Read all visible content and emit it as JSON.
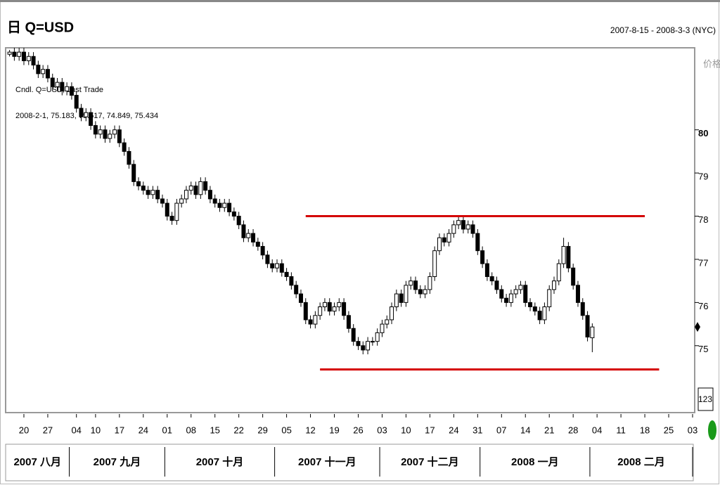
{
  "chart_data": {
    "type": "candlestick",
    "title": "日 Q=USD",
    "subtitle": "2007-8-15 - 2008-3-3 (NYC)",
    "y_label": "价格",
    "legend": "Cndl. Q=USD, Last Trade",
    "info": "2008-2-1, 75.183, 75.517, 74.849, 75.434",
    "box_label": "123",
    "up_color": "#ffffff",
    "down_color": "#000000",
    "x": [
      "2007-08-15",
      "2007-08-16",
      "2007-08-17",
      "2007-08-20",
      "2007-08-21",
      "2007-08-22",
      "2007-08-23",
      "2007-08-24",
      "2007-08-27",
      "2007-08-28",
      "2007-08-29",
      "2007-08-30",
      "2007-08-31",
      "2007-09-03",
      "2007-09-04",
      "2007-09-05",
      "2007-09-06",
      "2007-09-07",
      "2007-09-10",
      "2007-09-11",
      "2007-09-12",
      "2007-09-13",
      "2007-09-14",
      "2007-09-17",
      "2007-09-18",
      "2007-09-19",
      "2007-09-20",
      "2007-09-21",
      "2007-09-24",
      "2007-09-25",
      "2007-09-26",
      "2007-09-27",
      "2007-09-28",
      "2007-10-01",
      "2007-10-02",
      "2007-10-03",
      "2007-10-04",
      "2007-10-05",
      "2007-10-08",
      "2007-10-09",
      "2007-10-10",
      "2007-10-11",
      "2007-10-12",
      "2007-10-15",
      "2007-10-16",
      "2007-10-17",
      "2007-10-18",
      "2007-10-19",
      "2007-10-22",
      "2007-10-23",
      "2007-10-24",
      "2007-10-25",
      "2007-10-26",
      "2007-10-29",
      "2007-10-30",
      "2007-10-31",
      "2007-11-01",
      "2007-11-02",
      "2007-11-05",
      "2007-11-06",
      "2007-11-07",
      "2007-11-08",
      "2007-11-09",
      "2007-11-12",
      "2007-11-13",
      "2007-11-14",
      "2007-11-15",
      "2007-11-16",
      "2007-11-19",
      "2007-11-20",
      "2007-11-21",
      "2007-11-22",
      "2007-11-23",
      "2007-11-26",
      "2007-11-27",
      "2007-11-28",
      "2007-11-29",
      "2007-11-30",
      "2007-12-03",
      "2007-12-04",
      "2007-12-05",
      "2007-12-06",
      "2007-12-07",
      "2007-12-10",
      "2007-12-11",
      "2007-12-12",
      "2007-12-13",
      "2007-12-14",
      "2007-12-17",
      "2007-12-18",
      "2007-12-19",
      "2007-12-20",
      "2007-12-21",
      "2007-12-24",
      "2007-12-25",
      "2007-12-26",
      "2007-12-27",
      "2007-12-28",
      "2007-12-31",
      "2008-01-01",
      "2008-01-02",
      "2008-01-03",
      "2008-01-04",
      "2008-01-07",
      "2008-01-08",
      "2008-01-09",
      "2008-01-10",
      "2008-01-11",
      "2008-01-14",
      "2008-01-15",
      "2008-01-16",
      "2008-01-17",
      "2008-01-18",
      "2008-01-21",
      "2008-01-22",
      "2008-01-23",
      "2008-01-24",
      "2008-01-25",
      "2008-01-28",
      "2008-01-29",
      "2008-01-30",
      "2008-01-31",
      "2008-02-01"
    ],
    "open": [
      81.75,
      81.8,
      81.7,
      81.8,
      81.6,
      81.7,
      81.5,
      81.3,
      81.4,
      81.2,
      81.0,
      81.1,
      80.9,
      81.0,
      80.8,
      80.5,
      80.3,
      80.4,
      80.1,
      79.9,
      80.0,
      79.8,
      79.9,
      80.0,
      79.7,
      79.5,
      79.2,
      78.8,
      78.7,
      78.6,
      78.5,
      78.6,
      78.4,
      78.3,
      78.0,
      77.9,
      78.3,
      78.4,
      78.6,
      78.7,
      78.5,
      78.8,
      78.6,
      78.4,
      78.3,
      78.2,
      78.3,
      78.1,
      78.0,
      77.8,
      77.5,
      77.6,
      77.4,
      77.3,
      77.1,
      76.9,
      76.8,
      76.9,
      76.7,
      76.6,
      76.4,
      76.2,
      76.0,
      75.6,
      75.5,
      75.7,
      75.9,
      76.0,
      75.8,
      75.9,
      76.0,
      75.7,
      75.4,
      75.1,
      75.0,
      74.9,
      75.1,
      75.1,
      75.3,
      75.5,
      75.6,
      75.9,
      76.2,
      76.0,
      76.4,
      76.5,
      76.3,
      76.2,
      76.3,
      76.6,
      77.2,
      77.5,
      77.4,
      77.6,
      77.8,
      77.9,
      77.7,
      77.8,
      77.6,
      77.2,
      76.9,
      76.6,
      76.5,
      76.3,
      76.1,
      76.0,
      76.2,
      76.3,
      76.4,
      76.0,
      75.9,
      75.8,
      75.6,
      75.9,
      76.3,
      76.5,
      76.9,
      77.3,
      76.8,
      76.4,
      76.0,
      75.7,
      75.183
    ],
    "high": [
      81.85,
      81.9,
      81.9,
      81.9,
      81.8,
      81.8,
      81.6,
      81.5,
      81.5,
      81.3,
      81.2,
      81.2,
      81.1,
      81.1,
      80.9,
      80.6,
      80.5,
      80.5,
      80.2,
      80.1,
      80.1,
      80.0,
      80.1,
      80.1,
      79.8,
      79.6,
      79.3,
      78.9,
      78.8,
      78.7,
      78.7,
      78.7,
      78.5,
      78.4,
      78.1,
      78.4,
      78.5,
      78.7,
      78.8,
      78.8,
      78.9,
      78.9,
      78.7,
      78.5,
      78.4,
      78.4,
      78.4,
      78.2,
      78.1,
      77.9,
      77.7,
      77.7,
      77.5,
      77.4,
      77.2,
      77.0,
      77.0,
      77.0,
      76.8,
      76.7,
      76.5,
      76.3,
      76.1,
      75.7,
      75.8,
      76.0,
      76.1,
      76.1,
      76.0,
      76.1,
      76.1,
      75.8,
      75.5,
      75.2,
      75.1,
      75.2,
      75.2,
      75.4,
      75.6,
      75.7,
      76.0,
      76.3,
      76.3,
      76.5,
      76.6,
      76.6,
      76.4,
      76.4,
      76.7,
      77.3,
      77.6,
      77.6,
      77.7,
      77.9,
      78.0,
      78.0,
      77.9,
      77.9,
      77.7,
      77.3,
      77.0,
      76.7,
      76.6,
      76.4,
      76.2,
      76.3,
      76.4,
      76.5,
      76.5,
      76.1,
      76.0,
      75.9,
      76.0,
      76.4,
      76.6,
      77.0,
      77.5,
      77.4,
      76.9,
      76.5,
      76.1,
      75.8,
      75.517
    ],
    "low": [
      81.7,
      81.6,
      81.6,
      81.5,
      81.5,
      81.4,
      81.2,
      81.2,
      81.1,
      80.9,
      80.9,
      80.8,
      80.8,
      80.7,
      80.4,
      80.2,
      80.2,
      80.0,
      79.8,
      79.8,
      79.7,
      79.7,
      79.8,
      79.6,
      79.4,
      79.1,
      78.7,
      78.6,
      78.5,
      78.4,
      78.4,
      78.3,
      78.2,
      77.9,
      77.8,
      77.8,
      78.2,
      78.3,
      78.5,
      78.4,
      78.4,
      78.5,
      78.3,
      78.2,
      78.1,
      78.1,
      78.0,
      77.9,
      77.7,
      77.4,
      77.4,
      77.3,
      77.2,
      77.0,
      76.8,
      76.7,
      76.7,
      76.6,
      76.5,
      76.3,
      76.1,
      75.9,
      75.5,
      75.4,
      75.4,
      75.6,
      75.8,
      75.7,
      75.7,
      75.8,
      75.6,
      75.3,
      75.0,
      74.9,
      74.8,
      74.8,
      75.0,
      75.0,
      75.2,
      75.4,
      75.5,
      75.8,
      75.9,
      75.9,
      76.3,
      76.2,
      76.1,
      76.1,
      76.2,
      76.5,
      77.1,
      77.3,
      77.3,
      77.5,
      77.7,
      77.6,
      77.6,
      77.5,
      77.1,
      76.8,
      76.5,
      76.4,
      76.2,
      76.0,
      75.9,
      75.9,
      76.1,
      76.2,
      75.9,
      75.8,
      75.7,
      75.5,
      75.5,
      75.8,
      76.2,
      76.4,
      76.8,
      76.7,
      76.3,
      75.9,
      75.6,
      75.1,
      74.849
    ],
    "close": [
      81.8,
      81.7,
      81.8,
      81.6,
      81.7,
      81.5,
      81.3,
      81.4,
      81.2,
      81.0,
      81.1,
      80.9,
      81.0,
      80.8,
      80.5,
      80.3,
      80.4,
      80.1,
      79.9,
      80.0,
      79.8,
      79.9,
      80.0,
      79.7,
      79.5,
      79.2,
      78.8,
      78.7,
      78.6,
      78.5,
      78.6,
      78.4,
      78.3,
      78.0,
      77.9,
      78.3,
      78.4,
      78.6,
      78.7,
      78.5,
      78.8,
      78.6,
      78.4,
      78.3,
      78.2,
      78.3,
      78.1,
      78.0,
      77.8,
      77.5,
      77.6,
      77.4,
      77.3,
      77.1,
      76.9,
      76.8,
      76.9,
      76.7,
      76.6,
      76.4,
      76.2,
      76.0,
      75.6,
      75.5,
      75.7,
      75.9,
      76.0,
      75.8,
      75.9,
      76.0,
      75.7,
      75.4,
      75.1,
      75.0,
      74.9,
      75.1,
      75.1,
      75.3,
      75.5,
      75.6,
      75.9,
      76.2,
      76.0,
      76.4,
      76.5,
      76.3,
      76.2,
      76.3,
      76.6,
      77.2,
      77.5,
      77.4,
      77.6,
      77.8,
      77.9,
      77.7,
      77.8,
      77.6,
      77.2,
      76.9,
      76.6,
      76.5,
      76.3,
      76.1,
      76.0,
      76.2,
      76.3,
      76.4,
      76.0,
      75.9,
      75.8,
      75.6,
      75.9,
      76.3,
      76.5,
      76.9,
      77.3,
      76.8,
      76.4,
      76.0,
      75.7,
      75.2,
      75.434
    ],
    "xlim": [
      "2007-08-15",
      "2008-03-03"
    ],
    "ylim": [
      73.45,
      81.9
    ],
    "yticks": [
      75,
      76,
      77,
      78,
      79,
      80
    ],
    "xticks": [
      {
        "value": "2007-08-20",
        "label": "20"
      },
      {
        "value": "2007-08-27",
        "label": "27"
      },
      {
        "value": "2007-09-04",
        "label": "04"
      },
      {
        "value": "2007-09-10",
        "label": "10"
      },
      {
        "value": "2007-09-17",
        "label": "17"
      },
      {
        "value": "2007-09-24",
        "label": "24"
      },
      {
        "value": "2007-10-01",
        "label": "01"
      },
      {
        "value": "2007-10-08",
        "label": "08"
      },
      {
        "value": "2007-10-15",
        "label": "15"
      },
      {
        "value": "2007-10-22",
        "label": "22"
      },
      {
        "value": "2007-10-29",
        "label": "29"
      },
      {
        "value": "2007-11-05",
        "label": "05"
      },
      {
        "value": "2007-11-12",
        "label": "12"
      },
      {
        "value": "2007-11-19",
        "label": "19"
      },
      {
        "value": "2007-11-26",
        "label": "26"
      },
      {
        "value": "2007-12-03",
        "label": "03"
      },
      {
        "value": "2007-12-10",
        "label": "10"
      },
      {
        "value": "2007-12-17",
        "label": "17"
      },
      {
        "value": "2007-12-24",
        "label": "24"
      },
      {
        "value": "2007-12-31",
        "label": "31"
      },
      {
        "value": "2008-01-07",
        "label": "07"
      },
      {
        "value": "2008-01-14",
        "label": "14"
      },
      {
        "value": "2008-01-21",
        "label": "21"
      },
      {
        "value": "2008-01-28",
        "label": "28"
      },
      {
        "value": "2008-02-04",
        "label": "04"
      },
      {
        "value": "2008-02-11",
        "label": "11"
      },
      {
        "value": "2008-02-18",
        "label": "18"
      },
      {
        "value": "2008-02-25",
        "label": "25"
      },
      {
        "value": "2008-03-03",
        "label": "03"
      }
    ],
    "months": [
      {
        "value": "2007-08",
        "label": "2007 八月"
      },
      {
        "value": "2007-09",
        "label": "2007 九月"
      },
      {
        "value": "2007-10",
        "label": "2007 十月"
      },
      {
        "value": "2007-11",
        "label": "2007 十一月"
      },
      {
        "value": "2007-12",
        "label": "2007 十二月"
      },
      {
        "value": "2008-01",
        "label": "2008 一月"
      },
      {
        "value": "2008-02",
        "label": "2008 二月"
      }
    ],
    "lines": [
      {
        "value": 78.0,
        "x": [
          "2007-11-09",
          "2008-02-18"
        ],
        "color": "#d40000"
      },
      {
        "value": 74.45,
        "x": [
          "2007-11-14",
          "2008-02-21"
        ],
        "color": "#d40000"
      }
    ]
  }
}
